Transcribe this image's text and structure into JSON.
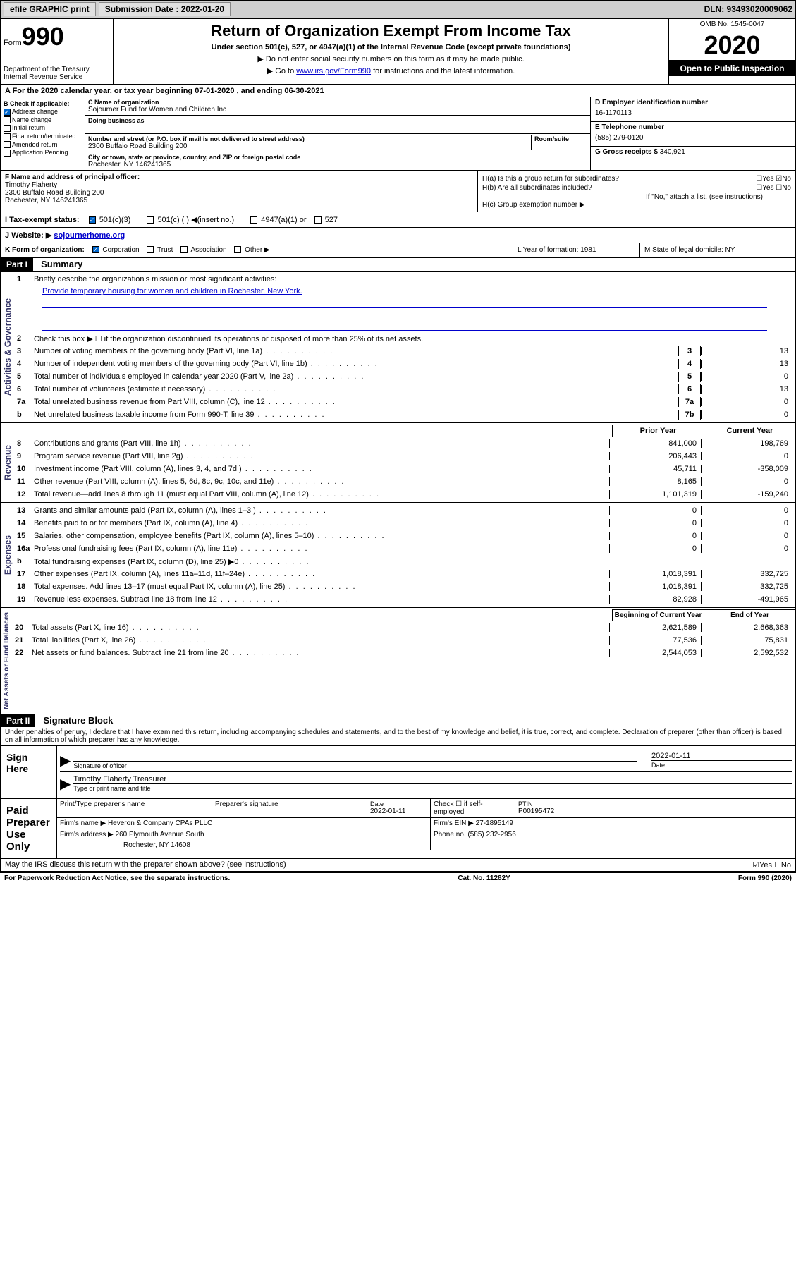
{
  "topbar": {
    "efile": "efile GRAPHIC print",
    "sub_label": "Submission Date : 2022-01-20",
    "dln": "DLN: 93493020009062"
  },
  "header": {
    "form_prefix": "Form",
    "form_number": "990",
    "dept": "Department of the Treasury\nInternal Revenue Service",
    "title": "Return of Organization Exempt From Income Tax",
    "subtitle": "Under section 501(c), 527, or 4947(a)(1) of the Internal Revenue Code (except private foundations)",
    "note1": "▶ Do not enter social security numbers on this form as it may be made public.",
    "note2_pre": "▶ Go to ",
    "note2_link": "www.irs.gov/Form990",
    "note2_post": " for instructions and the latest information.",
    "omb": "OMB No. 1545-0047",
    "year": "2020",
    "inspection": "Open to Public Inspection"
  },
  "row_a": "A For the 2020 calendar year, or tax year beginning 07-01-2020   , and ending 06-30-2021",
  "box_b": {
    "hdr": "B Check if applicable:",
    "items": [
      "Address change",
      "Name change",
      "Initial return",
      "Final return/terminated",
      "Amended return",
      "Application Pending"
    ],
    "checked_idx": 0
  },
  "box_c": {
    "name_lbl": "C Name of organization",
    "name": "Sojourner Fund for Women and Children Inc",
    "dba_lbl": "Doing business as",
    "addr_lbl": "Number and street (or P.O. box if mail is not delivered to street address)",
    "room_lbl": "Room/suite",
    "addr": "2300 Buffalo Road Building 200",
    "city_lbl": "City or town, state or province, country, and ZIP or foreign postal code",
    "city": "Rochester, NY  146241365"
  },
  "box_d": {
    "ein_lbl": "D Employer identification number",
    "ein": "16-1170113",
    "phone_lbl": "E Telephone number",
    "phone": "(585) 279-0120",
    "gross_lbl": "G Gross receipts $",
    "gross": "340,921"
  },
  "box_f": {
    "lbl": "F Name and address of principal officer:",
    "name": "Timothy Flaherty",
    "addr1": "2300 Buffalo Road Building 200",
    "addr2": "Rochester, NY  146241365"
  },
  "box_h": {
    "ha": "H(a)  Is this a group return for subordinates?",
    "hb": "H(b)  Are all subordinates included?",
    "hb_note": "If \"No,\" attach a list. (see instructions)",
    "hc": "H(c)  Group exemption number ▶"
  },
  "row_i": {
    "lbl": "I Tax-exempt status:",
    "opts": [
      "501(c)(3)",
      "501(c) (  ) ◀(insert no.)",
      "4947(a)(1) or",
      "527"
    ]
  },
  "row_j": {
    "lbl": "J Website: ▶",
    "val": "sojournerhome.org"
  },
  "row_k": {
    "lbl": "K Form of organization:",
    "opts": [
      "Corporation",
      "Trust",
      "Association",
      "Other ▶"
    ]
  },
  "row_l": "L Year of formation: 1981",
  "row_m": "M State of legal domicile: NY",
  "part1": {
    "hdr": "Part I",
    "title": "Summary",
    "q1": "Briefly describe the organization's mission or most significant activities:",
    "mission": "Provide temporary housing for women and children in Rochester, New York.",
    "q2": "Check this box ▶ ☐  if the organization discontinued its operations or disposed of more than 25% of its net assets.",
    "sections": {
      "gov": "Activities & Governance",
      "rev": "Revenue",
      "exp": "Expenses",
      "net": "Net Assets or Fund Balances"
    },
    "col_hdrs": {
      "prior": "Prior Year",
      "current": "Current Year",
      "beg": "Beginning of Current Year",
      "end": "End of Year"
    },
    "lines_gov": [
      {
        "n": "3",
        "t": "Number of voting members of the governing body (Part VI, line 1a)",
        "box": "3",
        "v": "13"
      },
      {
        "n": "4",
        "t": "Number of independent voting members of the governing body (Part VI, line 1b)",
        "box": "4",
        "v": "13"
      },
      {
        "n": "5",
        "t": "Total number of individuals employed in calendar year 2020 (Part V, line 2a)",
        "box": "5",
        "v": "0"
      },
      {
        "n": "6",
        "t": "Total number of volunteers (estimate if necessary)",
        "box": "6",
        "v": "13"
      },
      {
        "n": "7a",
        "t": "Total unrelated business revenue from Part VIII, column (C), line 12",
        "box": "7a",
        "v": "0"
      },
      {
        "n": " b",
        "t": "Net unrelated business taxable income from Form 990-T, line 39",
        "box": "7b",
        "v": "0"
      }
    ],
    "lines_rev": [
      {
        "n": "8",
        "t": "Contributions and grants (Part VIII, line 1h)",
        "p": "841,000",
        "c": "198,769"
      },
      {
        "n": "9",
        "t": "Program service revenue (Part VIII, line 2g)",
        "p": "206,443",
        "c": "0"
      },
      {
        "n": "10",
        "t": "Investment income (Part VIII, column (A), lines 3, 4, and 7d )",
        "p": "45,711",
        "c": "-358,009"
      },
      {
        "n": "11",
        "t": "Other revenue (Part VIII, column (A), lines 5, 6d, 8c, 9c, 10c, and 11e)",
        "p": "8,165",
        "c": "0"
      },
      {
        "n": "12",
        "t": "Total revenue—add lines 8 through 11 (must equal Part VIII, column (A), line 12)",
        "p": "1,101,319",
        "c": "-159,240"
      }
    ],
    "lines_exp": [
      {
        "n": "13",
        "t": "Grants and similar amounts paid (Part IX, column (A), lines 1–3 )",
        "p": "0",
        "c": "0"
      },
      {
        "n": "14",
        "t": "Benefits paid to or for members (Part IX, column (A), line 4)",
        "p": "0",
        "c": "0"
      },
      {
        "n": "15",
        "t": "Salaries, other compensation, employee benefits (Part IX, column (A), lines 5–10)",
        "p": "0",
        "c": "0"
      },
      {
        "n": "16a",
        "t": "Professional fundraising fees (Part IX, column (A), line 11e)",
        "p": "0",
        "c": "0"
      },
      {
        "n": "b",
        "t": "Total fundraising expenses (Part IX, column (D), line 25) ▶0",
        "p": "",
        "c": ""
      },
      {
        "n": "17",
        "t": "Other expenses (Part IX, column (A), lines 11a–11d, 11f–24e)",
        "p": "1,018,391",
        "c": "332,725"
      },
      {
        "n": "18",
        "t": "Total expenses. Add lines 13–17 (must equal Part IX, column (A), line 25)",
        "p": "1,018,391",
        "c": "332,725"
      },
      {
        "n": "19",
        "t": "Revenue less expenses. Subtract line 18 from line 12",
        "p": "82,928",
        "c": "-491,965"
      }
    ],
    "lines_net": [
      {
        "n": "20",
        "t": "Total assets (Part X, line 16)",
        "p": "2,621,589",
        "c": "2,668,363"
      },
      {
        "n": "21",
        "t": "Total liabilities (Part X, line 26)",
        "p": "77,536",
        "c": "75,831"
      },
      {
        "n": "22",
        "t": "Net assets or fund balances. Subtract line 21 from line 20",
        "p": "2,544,053",
        "c": "2,592,532"
      }
    ]
  },
  "part2": {
    "hdr": "Part II",
    "title": "Signature Block",
    "decl": "Under penalties of perjury, I declare that I have examined this return, including accompanying schedules and statements, and to the best of my knowledge and belief, it is true, correct, and complete. Declaration of preparer (other than officer) is based on all information of which preparer has any knowledge.",
    "sign_here": "Sign Here",
    "sig_officer": "Signature of officer",
    "sig_date": "2022-01-11",
    "officer_name": "Timothy Flaherty Treasurer",
    "type_name": "Type or print name and title",
    "paid_prep": "Paid Preparer Use Only",
    "prep_name_lbl": "Print/Type preparer's name",
    "prep_sig_lbl": "Preparer's signature",
    "prep_date_lbl": "Date",
    "prep_date": "2022-01-11",
    "self_emp": "Check ☐ if self-employed",
    "ptin_lbl": "PTIN",
    "ptin": "P00195472",
    "firm_name_lbl": "Firm's name    ▶",
    "firm_name": "Heveron & Company CPAs PLLC",
    "firm_ein_lbl": "Firm's EIN ▶",
    "firm_ein": "27-1895149",
    "firm_addr_lbl": "Firm's address ▶",
    "firm_addr1": "260 Plymouth Avenue South",
    "firm_addr2": "Rochester, NY  14608",
    "firm_phone_lbl": "Phone no.",
    "firm_phone": "(585) 232-2956",
    "discuss": "May the IRS discuss this return with the preparer shown above? (see instructions)"
  },
  "footer": {
    "left": "For Paperwork Reduction Act Notice, see the separate instructions.",
    "mid": "Cat. No. 11282Y",
    "right": "Form 990 (2020)"
  }
}
